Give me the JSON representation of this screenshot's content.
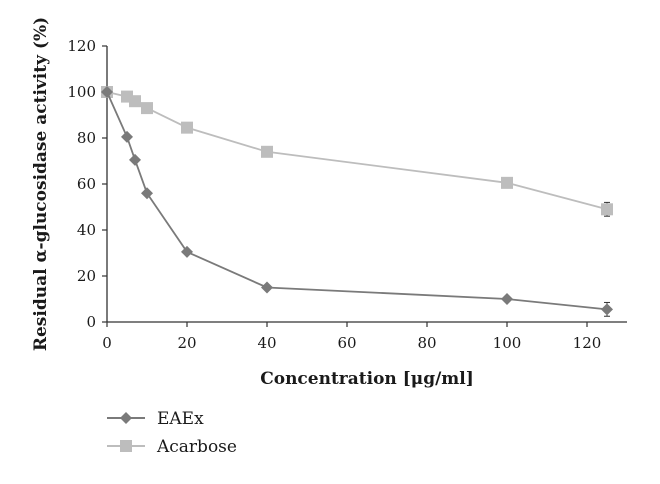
{
  "chart_data": {
    "type": "line",
    "title": "",
    "xlabel": "Concentration [μg/ml]",
    "ylabel": "Residual α-glucosidase activity (%)",
    "xlim": [
      0,
      130
    ],
    "ylim": [
      0,
      120
    ],
    "x_ticks": [
      "0",
      "20",
      "40",
      "60",
      "80",
      "100",
      "120"
    ],
    "y_ticks": [
      "0",
      "20",
      "40",
      "60",
      "80",
      "100",
      "120"
    ],
    "grid": false,
    "legend_placement": "bottom-left",
    "series": [
      {
        "name": "EAEx",
        "marker": "diamond",
        "color": "#7a7a7a",
        "x": [
          0,
          5,
          7,
          10,
          20,
          40,
          100,
          125
        ],
        "y": [
          100,
          80.5,
          70.5,
          56,
          30.5,
          15,
          10,
          5.5
        ],
        "error": [
          0,
          1,
          1,
          0.5,
          0.5,
          0.5,
          0.5,
          3
        ]
      },
      {
        "name": "Acarbose",
        "marker": "square",
        "color": "#bdbdbd",
        "x": [
          0,
          5,
          7,
          10,
          20,
          40,
          100,
          125
        ],
        "y": [
          100,
          98,
          96,
          93,
          84.5,
          74,
          60.5,
          49
        ],
        "error": [
          0,
          1,
          1,
          1,
          1,
          1,
          1,
          3
        ]
      }
    ]
  }
}
